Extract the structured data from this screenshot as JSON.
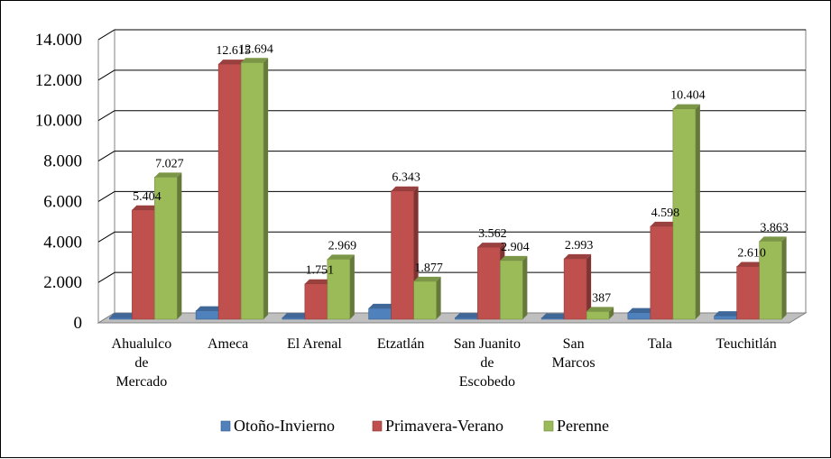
{
  "chart_data": {
    "type": "bar",
    "categories": [
      [
        "Ahualulco",
        "de",
        "Mercado"
      ],
      [
        "Ameca"
      ],
      [
        "El Arenal"
      ],
      [
        "Etzatlán"
      ],
      [
        "San Juanito",
        "de",
        "Escobedo"
      ],
      [
        "San",
        "Marcos"
      ],
      [
        "Tala"
      ],
      [
        "Teuchitlán"
      ]
    ],
    "series": [
      {
        "name": "Otoño-Invierno",
        "color": "#4F81BD",
        "values": [
          80,
          420,
          80,
          540,
          80,
          60,
          330,
          170
        ],
        "labels": [
          "",
          "",
          "",
          "",
          "",
          "",
          "",
          ""
        ]
      },
      {
        "name": "Primavera-Verano",
        "color": "#C0504D",
        "values": [
          5404,
          12615,
          1751,
          6343,
          3562,
          2993,
          4598,
          2610
        ],
        "labels": [
          "5.404",
          "12.615",
          "1.751",
          "6.343",
          "3.562",
          "2.993",
          "4.598",
          "2.610"
        ]
      },
      {
        "name": "Perenne",
        "color": "#9BBB59",
        "values": [
          7027,
          12694,
          2969,
          1877,
          2904,
          387,
          10404,
          3863
        ],
        "labels": [
          "7.027",
          "12.694",
          "2.969",
          "1.877",
          "2.904",
          "387",
          "10.404",
          "3.863"
        ]
      }
    ],
    "yticks": [
      "0",
      "2.000",
      "4.000",
      "6.000",
      "8.000",
      "10.000",
      "12.000",
      "14.000"
    ],
    "ylim": [
      0,
      14000
    ],
    "grid": true,
    "legend_position": "bottom"
  }
}
